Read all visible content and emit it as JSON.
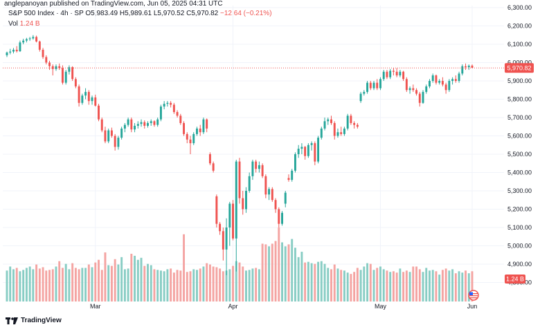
{
  "header": {
    "text": "anglepanoyan published on TradingView.com, Jun 05, 2025 04:31 UTC"
  },
  "legend": {
    "symbol": "S&P 500 Index · 4h · SP",
    "open": "O5,983.49",
    "high": "H5,989.61",
    "low": "L5,970.52",
    "close": "C5,970.82",
    "change": "−12.64 (−0.21%)",
    "vol_label": "Vol",
    "vol_value": "1.24 B"
  },
  "footer": {
    "brand": "TradingView"
  },
  "colors": {
    "up": "#26a69a",
    "down": "#ef5350",
    "up_vol": "#88cdc4",
    "down_vol": "#f4a4a2",
    "grid": "#f0f3fa",
    "axis_text": "#131722"
  },
  "icons": {
    "flag": "us-flag-icon",
    "brand": "tradingview-logo-icon"
  },
  "chart_data": {
    "type": "candlestick",
    "x_ticks": [
      "Mar",
      "Apr",
      "May",
      "Jun"
    ],
    "y_ticks": [
      "4,800.00",
      "4,900.00",
      "5,000.00",
      "5,100.00",
      "5,200.00",
      "5,300.00",
      "5,400.00",
      "5,500.00",
      "5,600.00",
      "5,700.00",
      "5,800.00",
      "5,900.00",
      "6,000.00",
      "6,100.00",
      "6,200.00",
      "6,300.00"
    ],
    "ylim": [
      4780,
      6320
    ],
    "last_price_label": "5,970.82",
    "last_price": 5970.82,
    "volume_label": "1.24 B",
    "grid": true,
    "candles": [
      {
        "o": 6040,
        "h": 6060,
        "l": 6030,
        "c": 6055
      },
      {
        "o": 6055,
        "h": 6075,
        "l": 6045,
        "c": 6060
      },
      {
        "o": 6060,
        "h": 6080,
        "l": 6050,
        "c": 6070
      },
      {
        "o": 6070,
        "h": 6090,
        "l": 6055,
        "c": 6062
      },
      {
        "o": 6062,
        "h": 6120,
        "l": 6058,
        "c": 6110
      },
      {
        "o": 6110,
        "h": 6130,
        "l": 6100,
        "c": 6120
      },
      {
        "o": 6120,
        "h": 6135,
        "l": 6110,
        "c": 6128
      },
      {
        "o": 6128,
        "h": 6140,
        "l": 6118,
        "c": 6132
      },
      {
        "o": 6132,
        "h": 6150,
        "l": 6125,
        "c": 6140
      },
      {
        "o": 6140,
        "h": 6147,
        "l": 6110,
        "c": 6115
      },
      {
        "o": 6115,
        "h": 6120,
        "l": 6060,
        "c": 6070
      },
      {
        "o": 6070,
        "h": 6080,
        "l": 6020,
        "c": 6030
      },
      {
        "o": 6030,
        "h": 6040,
        "l": 5990,
        "c": 6000
      },
      {
        "o": 6000,
        "h": 6010,
        "l": 5960,
        "c": 5980
      },
      {
        "o": 5980,
        "h": 5990,
        "l": 5930,
        "c": 5965
      },
      {
        "o": 5965,
        "h": 5990,
        "l": 5955,
        "c": 5980
      },
      {
        "o": 5980,
        "h": 5995,
        "l": 5960,
        "c": 5970
      },
      {
        "o": 5970,
        "h": 5985,
        "l": 5880,
        "c": 5890
      },
      {
        "o": 5890,
        "h": 5960,
        "l": 5880,
        "c": 5950
      },
      {
        "o": 5950,
        "h": 5985,
        "l": 5935,
        "c": 5975
      },
      {
        "o": 5975,
        "h": 5980,
        "l": 5900,
        "c": 5910
      },
      {
        "o": 5910,
        "h": 5920,
        "l": 5860,
        "c": 5870
      },
      {
        "o": 5870,
        "h": 5880,
        "l": 5760,
        "c": 5780
      },
      {
        "o": 5780,
        "h": 5830,
        "l": 5770,
        "c": 5820
      },
      {
        "o": 5820,
        "h": 5860,
        "l": 5800,
        "c": 5840
      },
      {
        "o": 5840,
        "h": 5850,
        "l": 5770,
        "c": 5790
      },
      {
        "o": 5790,
        "h": 5820,
        "l": 5770,
        "c": 5810
      },
      {
        "o": 5810,
        "h": 5825,
        "l": 5760,
        "c": 5765
      },
      {
        "o": 5765,
        "h": 5775,
        "l": 5680,
        "c": 5690
      },
      {
        "o": 5690,
        "h": 5700,
        "l": 5620,
        "c": 5630
      },
      {
        "o": 5630,
        "h": 5650,
        "l": 5560,
        "c": 5570
      },
      {
        "o": 5570,
        "h": 5640,
        "l": 5560,
        "c": 5630
      },
      {
        "o": 5630,
        "h": 5645,
        "l": 5590,
        "c": 5600
      },
      {
        "o": 5600,
        "h": 5610,
        "l": 5520,
        "c": 5540
      },
      {
        "o": 5540,
        "h": 5600,
        "l": 5525,
        "c": 5590
      },
      {
        "o": 5590,
        "h": 5650,
        "l": 5580,
        "c": 5640
      },
      {
        "o": 5640,
        "h": 5670,
        "l": 5620,
        "c": 5660
      },
      {
        "o": 5660,
        "h": 5700,
        "l": 5650,
        "c": 5690
      },
      {
        "o": 5690,
        "h": 5700,
        "l": 5620,
        "c": 5635
      },
      {
        "o": 5635,
        "h": 5670,
        "l": 5620,
        "c": 5655
      },
      {
        "o": 5655,
        "h": 5680,
        "l": 5640,
        "c": 5665
      },
      {
        "o": 5665,
        "h": 5690,
        "l": 5650,
        "c": 5675
      },
      {
        "o": 5675,
        "h": 5685,
        "l": 5640,
        "c": 5655
      },
      {
        "o": 5655,
        "h": 5680,
        "l": 5645,
        "c": 5670
      },
      {
        "o": 5670,
        "h": 5690,
        "l": 5655,
        "c": 5680
      },
      {
        "o": 5680,
        "h": 5685,
        "l": 5650,
        "c": 5660
      },
      {
        "o": 5660,
        "h": 5700,
        "l": 5650,
        "c": 5690
      },
      {
        "o": 5690,
        "h": 5770,
        "l": 5680,
        "c": 5760
      },
      {
        "o": 5760,
        "h": 5790,
        "l": 5745,
        "c": 5775
      },
      {
        "o": 5775,
        "h": 5790,
        "l": 5760,
        "c": 5780
      },
      {
        "o": 5780,
        "h": 5790,
        "l": 5755,
        "c": 5770
      },
      {
        "o": 5770,
        "h": 5780,
        "l": 5720,
        "c": 5730
      },
      {
        "o": 5730,
        "h": 5740,
        "l": 5700,
        "c": 5710
      },
      {
        "o": 5710,
        "h": 5720,
        "l": 5660,
        "c": 5670
      },
      {
        "o": 5670,
        "h": 5680,
        "l": 5600,
        "c": 5610
      },
      {
        "o": 5610,
        "h": 5620,
        "l": 5560,
        "c": 5580
      },
      {
        "o": 5580,
        "h": 5600,
        "l": 5500,
        "c": 5560
      },
      {
        "o": 5560,
        "h": 5620,
        "l": 5550,
        "c": 5610
      },
      {
        "o": 5610,
        "h": 5650,
        "l": 5600,
        "c": 5640
      },
      {
        "o": 5640,
        "h": 5660,
        "l": 5600,
        "c": 5620
      },
      {
        "o": 5620,
        "h": 5700,
        "l": 5610,
        "c": 5690
      },
      {
        "o": 5690,
        "h": 5695,
        "l": 5620,
        "c": 5640
      },
      {
        "o": 5500,
        "h": 5510,
        "l": 5440,
        "c": 5450
      },
      {
        "o": 5450,
        "h": 5460,
        "l": 5400,
        "c": 5410
      },
      {
        "o": 5270,
        "h": 5280,
        "l": 5100,
        "c": 5120
      },
      {
        "o": 5120,
        "h": 5130,
        "l": 5060,
        "c": 5080
      },
      {
        "o": 5080,
        "h": 5100,
        "l": 4920,
        "c": 4980
      },
      {
        "o": 4980,
        "h": 5150,
        "l": 4840,
        "c": 5100
      },
      {
        "o": 5100,
        "h": 5240,
        "l": 5000,
        "c": 5230
      },
      {
        "o": 5230,
        "h": 5250,
        "l": 5030,
        "c": 5040
      },
      {
        "o": 5040,
        "h": 5470,
        "l": 4860,
        "c": 5460
      },
      {
        "o": 5460,
        "h": 5480,
        "l": 5230,
        "c": 5260
      },
      {
        "o": 5260,
        "h": 5300,
        "l": 5170,
        "c": 5200
      },
      {
        "o": 5200,
        "h": 5320,
        "l": 5180,
        "c": 5300
      },
      {
        "o": 5300,
        "h": 5400,
        "l": 5290,
        "c": 5380
      },
      {
        "o": 5380,
        "h": 5470,
        "l": 5360,
        "c": 5460
      },
      {
        "o": 5460,
        "h": 5470,
        "l": 5400,
        "c": 5420
      },
      {
        "o": 5420,
        "h": 5460,
        "l": 5400,
        "c": 5440
      },
      {
        "o": 5440,
        "h": 5450,
        "l": 5370,
        "c": 5380
      },
      {
        "o": 5380,
        "h": 5390,
        "l": 5260,
        "c": 5280
      },
      {
        "o": 5280,
        "h": 5320,
        "l": 5250,
        "c": 5310
      },
      {
        "o": 5310,
        "h": 5320,
        "l": 5240,
        "c": 5250
      },
      {
        "o": 5250,
        "h": 5260,
        "l": 5180,
        "c": 5200
      },
      {
        "o": 5200,
        "h": 5210,
        "l": 5100,
        "c": 5120
      },
      {
        "o": 5120,
        "h": 5190,
        "l": 5110,
        "c": 5180
      },
      {
        "o": 5230,
        "h": 5300,
        "l": 5210,
        "c": 5290
      },
      {
        "o": 5370,
        "h": 5390,
        "l": 5350,
        "c": 5360
      },
      {
        "o": 5360,
        "h": 5420,
        "l": 5350,
        "c": 5410
      },
      {
        "o": 5410,
        "h": 5510,
        "l": 5400,
        "c": 5500
      },
      {
        "o": 5500,
        "h": 5550,
        "l": 5480,
        "c": 5530
      },
      {
        "o": 5530,
        "h": 5560,
        "l": 5500,
        "c": 5540
      },
      {
        "o": 5540,
        "h": 5545,
        "l": 5470,
        "c": 5490
      },
      {
        "o": 5490,
        "h": 5560,
        "l": 5480,
        "c": 5550
      },
      {
        "o": 5550,
        "h": 5570,
        "l": 5520,
        "c": 5560
      },
      {
        "o": 5560,
        "h": 5570,
        "l": 5440,
        "c": 5460
      },
      {
        "o": 5460,
        "h": 5600,
        "l": 5450,
        "c": 5590
      },
      {
        "o": 5590,
        "h": 5650,
        "l": 5580,
        "c": 5640
      },
      {
        "o": 5640,
        "h": 5700,
        "l": 5630,
        "c": 5680
      },
      {
        "o": 5680,
        "h": 5700,
        "l": 5660,
        "c": 5690
      },
      {
        "o": 5690,
        "h": 5710,
        "l": 5660,
        "c": 5670
      },
      {
        "o": 5670,
        "h": 5680,
        "l": 5580,
        "c": 5600
      },
      {
        "o": 5600,
        "h": 5640,
        "l": 5590,
        "c": 5620
      },
      {
        "o": 5620,
        "h": 5650,
        "l": 5600,
        "c": 5610
      },
      {
        "o": 5610,
        "h": 5650,
        "l": 5600,
        "c": 5640
      },
      {
        "o": 5640,
        "h": 5720,
        "l": 5630,
        "c": 5710
      },
      {
        "o": 5710,
        "h": 5720,
        "l": 5660,
        "c": 5670
      },
      {
        "o": 5670,
        "h": 5680,
        "l": 5640,
        "c": 5660
      },
      {
        "o": 5660,
        "h": 5670,
        "l": 5640,
        "c": 5650
      },
      {
        "o": 5790,
        "h": 5840,
        "l": 5780,
        "c": 5830
      },
      {
        "o": 5830,
        "h": 5850,
        "l": 5820,
        "c": 5840
      },
      {
        "o": 5840,
        "h": 5900,
        "l": 5830,
        "c": 5890
      },
      {
        "o": 5890,
        "h": 5900,
        "l": 5850,
        "c": 5860
      },
      {
        "o": 5860,
        "h": 5900,
        "l": 5850,
        "c": 5890
      },
      {
        "o": 5890,
        "h": 5910,
        "l": 5850,
        "c": 5860
      },
      {
        "o": 5860,
        "h": 5920,
        "l": 5850,
        "c": 5910
      },
      {
        "o": 5910,
        "h": 5960,
        "l": 5900,
        "c": 5950
      },
      {
        "o": 5950,
        "h": 5960,
        "l": 5910,
        "c": 5920
      },
      {
        "o": 5920,
        "h": 5965,
        "l": 5910,
        "c": 5955
      },
      {
        "o": 5955,
        "h": 5970,
        "l": 5930,
        "c": 5950
      },
      {
        "o": 5950,
        "h": 5970,
        "l": 5920,
        "c": 5930
      },
      {
        "o": 5930,
        "h": 5960,
        "l": 5920,
        "c": 5950
      },
      {
        "o": 5950,
        "h": 5955,
        "l": 5900,
        "c": 5910
      },
      {
        "o": 5910,
        "h": 5920,
        "l": 5840,
        "c": 5850
      },
      {
        "o": 5850,
        "h": 5870,
        "l": 5830,
        "c": 5860
      },
      {
        "o": 5860,
        "h": 5880,
        "l": 5840,
        "c": 5850
      },
      {
        "o": 5850,
        "h": 5860,
        "l": 5820,
        "c": 5830
      },
      {
        "o": 5830,
        "h": 5840,
        "l": 5760,
        "c": 5780
      },
      {
        "o": 5780,
        "h": 5850,
        "l": 5775,
        "c": 5840
      },
      {
        "o": 5840,
        "h": 5880,
        "l": 5830,
        "c": 5870
      },
      {
        "o": 5870,
        "h": 5910,
        "l": 5860,
        "c": 5900
      },
      {
        "o": 5900,
        "h": 5940,
        "l": 5890,
        "c": 5930
      },
      {
        "o": 5930,
        "h": 5935,
        "l": 5880,
        "c": 5890
      },
      {
        "o": 5890,
        "h": 5910,
        "l": 5880,
        "c": 5900
      },
      {
        "o": 5900,
        "h": 5920,
        "l": 5870,
        "c": 5880
      },
      {
        "o": 5880,
        "h": 5890,
        "l": 5830,
        "c": 5850
      },
      {
        "o": 5850,
        "h": 5910,
        "l": 5840,
        "c": 5900
      },
      {
        "o": 5900,
        "h": 5920,
        "l": 5880,
        "c": 5910
      },
      {
        "o": 5910,
        "h": 5930,
        "l": 5890,
        "c": 5900
      },
      {
        "o": 5900,
        "h": 5950,
        "l": 5890,
        "c": 5940
      },
      {
        "o": 5940,
        "h": 5990,
        "l": 5930,
        "c": 5980
      },
      {
        "o": 5980,
        "h": 5995,
        "l": 5960,
        "c": 5975
      },
      {
        "o": 5975,
        "h": 5990,
        "l": 5960,
        "c": 5983
      },
      {
        "o": 5983.49,
        "h": 5989.61,
        "l": 5970.52,
        "c": 5970.82
      }
    ],
    "volume_relative": [
      0.46,
      0.52,
      0.48,
      0.5,
      0.45,
      0.47,
      0.5,
      0.52,
      0.48,
      0.55,
      0.49,
      0.51,
      0.46,
      0.47,
      0.48,
      0.52,
      0.6,
      0.5,
      0.56,
      0.48,
      0.57,
      0.5,
      0.48,
      0.5,
      0.5,
      0.55,
      0.51,
      0.58,
      0.62,
      0.47,
      0.73,
      0.54,
      0.53,
      0.63,
      0.55,
      0.66,
      0.48,
      0.49,
      0.71,
      0.68,
      0.62,
      0.65,
      0.53,
      0.56,
      0.54,
      0.48,
      0.47,
      0.46,
      0.45,
      0.48,
      0.49,
      0.43,
      0.47,
      0.46,
      1.0,
      0.44,
      0.45,
      0.48,
      0.47,
      0.49,
      0.52,
      0.57,
      0.55,
      0.52,
      0.51,
      0.49,
      0.45,
      0.46,
      0.48,
      0.53,
      0.6,
      0.58,
      0.52,
      0.46,
      0.47,
      0.49,
      0.5,
      0.48,
      0.86,
      0.85,
      0.82,
      0.86,
      0.9,
      1.1,
      0.88,
      0.82,
      0.85,
      0.93,
      0.8,
      0.66,
      0.74,
      0.58,
      0.59,
      0.57,
      0.56,
      0.59,
      0.6,
      0.56,
      0.5,
      0.48,
      0.55,
      0.49,
      0.47,
      0.46,
      0.43,
      0.41,
      0.44,
      0.5,
      0.47,
      0.52,
      0.57,
      0.56,
      0.47,
      0.5,
      0.52,
      0.48,
      0.46,
      0.44,
      0.45,
      0.43,
      0.49,
      0.44,
      0.46,
      0.44,
      0.52,
      0.52,
      0.48,
      0.44,
      0.5,
      0.46,
      0.47,
      0.45,
      0.4,
      0.47,
      0.49,
      0.46,
      0.48,
      0.42,
      0.45,
      0.43,
      0.46,
      0.42,
      0.45,
      0.44,
      0.48,
      0.46,
      0.62,
      0.44,
      0.4,
      0.48,
      0.47,
      0.44,
      0.46,
      0.47
    ]
  }
}
